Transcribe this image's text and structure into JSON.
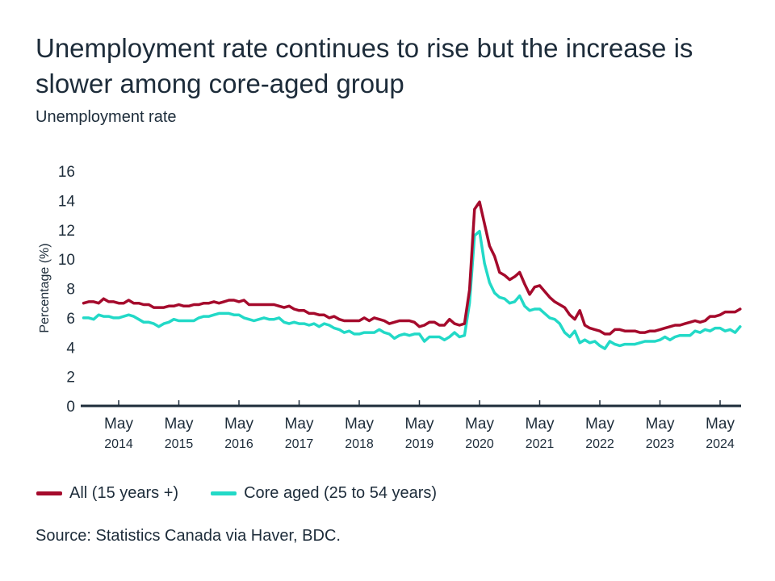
{
  "title": "Unemployment rate continues to rise but the increase is slower among core-aged group",
  "subtitle": "Unemployment rate",
  "source": "Source: Statistics Canada via Haver, BDC.",
  "colors": {
    "all": "#a50a2c",
    "core": "#22d9c7",
    "text": "#1d2c3a",
    "axis": "#1d2c3a"
  },
  "chart_data": {
    "type": "line",
    "title": "Unemployment rate continues to rise but the increase is slower among core-aged group",
    "subtitle": "Unemployment rate",
    "ylabel": "Percentage (%)",
    "xlabel": "",
    "ylim": [
      0,
      16
    ],
    "yticks": [
      "0",
      "2",
      "4",
      "6",
      "8",
      "10",
      "12",
      "14",
      "16"
    ],
    "xticks": [
      {
        "month": "May",
        "year": "2014",
        "date": "2014-05"
      },
      {
        "month": "May",
        "year": "2015",
        "date": "2015-05"
      },
      {
        "month": "May",
        "year": "2016",
        "date": "2016-05"
      },
      {
        "month": "May",
        "year": "2017",
        "date": "2017-05"
      },
      {
        "month": "May",
        "year": "2018",
        "date": "2018-05"
      },
      {
        "month": "May",
        "year": "2019",
        "date": "2019-05"
      },
      {
        "month": "May",
        "year": "2020",
        "date": "2020-05"
      },
      {
        "month": "May",
        "year": "2021",
        "date": "2021-05"
      },
      {
        "month": "May",
        "year": "2022",
        "date": "2022-05"
      },
      {
        "month": "May",
        "year": "2023",
        "date": "2023-05"
      },
      {
        "month": "May",
        "year": "2024",
        "date": "2024-05"
      }
    ],
    "x_start": "2013-10",
    "frequency": "monthly",
    "grid": false,
    "legend_placement": "bottom-left",
    "series": [
      {
        "name": "All (15 years +)",
        "color": "#a50a2c",
        "values": [
          7.0,
          7.1,
          7.1,
          7.0,
          7.3,
          7.1,
          7.1,
          7.0,
          7.0,
          7.2,
          7.0,
          7.0,
          6.9,
          6.9,
          6.7,
          6.7,
          6.7,
          6.8,
          6.8,
          6.9,
          6.8,
          6.8,
          6.9,
          6.9,
          7.0,
          7.0,
          7.1,
          7.0,
          7.1,
          7.2,
          7.2,
          7.1,
          7.2,
          6.9,
          6.9,
          6.9,
          6.9,
          6.9,
          6.9,
          6.8,
          6.7,
          6.8,
          6.6,
          6.5,
          6.5,
          6.3,
          6.3,
          6.2,
          6.2,
          6.0,
          6.1,
          5.9,
          5.8,
          5.8,
          5.8,
          5.8,
          6.0,
          5.8,
          6.0,
          5.9,
          5.8,
          5.6,
          5.7,
          5.8,
          5.8,
          5.8,
          5.7,
          5.4,
          5.5,
          5.7,
          5.7,
          5.5,
          5.5,
          5.9,
          5.6,
          5.5,
          5.6,
          7.9,
          13.4,
          13.9,
          12.4,
          10.9,
          10.2,
          9.1,
          8.9,
          8.6,
          8.8,
          9.1,
          8.3,
          7.6,
          8.1,
          8.2,
          7.8,
          7.4,
          7.1,
          6.9,
          6.7,
          6.2,
          5.9,
          6.5,
          5.5,
          5.3,
          5.2,
          5.1,
          4.9,
          4.9,
          5.2,
          5.2,
          5.1,
          5.1,
          5.1,
          5.0,
          5.0,
          5.1,
          5.1,
          5.2,
          5.3,
          5.4,
          5.5,
          5.5,
          5.6,
          5.7,
          5.8,
          5.7,
          5.8,
          6.1,
          6.1,
          6.2,
          6.4,
          6.4,
          6.4,
          6.6
        ]
      },
      {
        "name": "Core aged (25 to 54 years)",
        "color": "#22d9c7",
        "values": [
          6.0,
          6.0,
          5.9,
          6.2,
          6.1,
          6.1,
          6.0,
          6.0,
          6.1,
          6.2,
          6.1,
          5.9,
          5.7,
          5.7,
          5.6,
          5.4,
          5.6,
          5.7,
          5.9,
          5.8,
          5.8,
          5.8,
          5.8,
          6.0,
          6.1,
          6.1,
          6.2,
          6.3,
          6.3,
          6.3,
          6.2,
          6.2,
          6.0,
          5.9,
          5.8,
          5.9,
          6.0,
          5.9,
          5.9,
          6.0,
          5.7,
          5.6,
          5.7,
          5.6,
          5.6,
          5.5,
          5.6,
          5.4,
          5.6,
          5.5,
          5.3,
          5.2,
          5.0,
          5.1,
          4.9,
          4.9,
          5.0,
          5.0,
          5.0,
          5.2,
          5.0,
          4.9,
          4.6,
          4.8,
          4.9,
          4.8,
          4.9,
          4.9,
          4.4,
          4.7,
          4.7,
          4.7,
          4.5,
          4.7,
          5.0,
          4.7,
          4.8,
          7.0,
          11.6,
          11.9,
          9.7,
          8.4,
          7.7,
          7.4,
          7.3,
          7.0,
          7.1,
          7.5,
          6.8,
          6.5,
          6.6,
          6.6,
          6.3,
          6.0,
          5.9,
          5.6,
          5.0,
          4.7,
          5.1,
          4.3,
          4.5,
          4.3,
          4.4,
          4.1,
          3.9,
          4.4,
          4.2,
          4.1,
          4.2,
          4.2,
          4.2,
          4.3,
          4.4,
          4.4,
          4.4,
          4.5,
          4.7,
          4.5,
          4.7,
          4.8,
          4.8,
          4.8,
          5.1,
          5.0,
          5.2,
          5.1,
          5.3,
          5.3,
          5.1,
          5.2,
          5.0,
          5.4
        ]
      }
    ]
  }
}
